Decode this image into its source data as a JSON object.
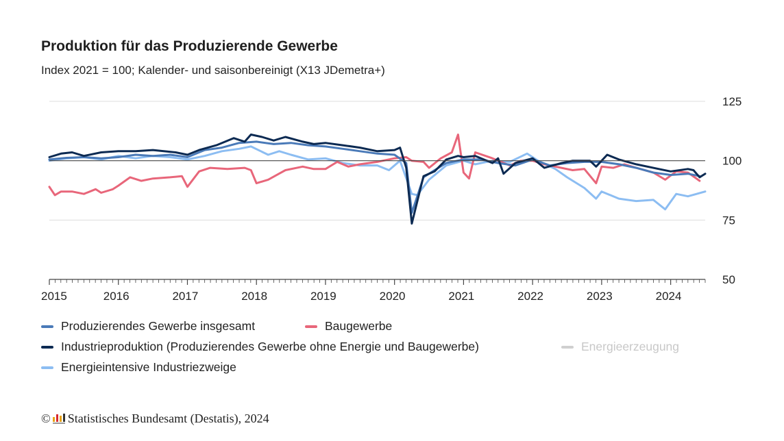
{
  "header": {
    "title": "Produktion für das Produzierende Gewerbe",
    "subtitle": "Index 2021 = 100; Kalender- und saisonbereinigt (X13 JDemetra+)"
  },
  "footer": {
    "copyright_symbol": "©",
    "source": "Statistisches Bundesamt (Destatis), 2024"
  },
  "colors": {
    "gesamt": "#4a7ab8",
    "bau": "#e8667a",
    "industrie": "#0c2a52",
    "energie": "#cfcfcf",
    "intensiv": "#8cbdf2",
    "reference_line": "#444444",
    "grid": "#dddddd",
    "axis": "#444444"
  },
  "legend": [
    {
      "key": "gesamt",
      "label": "Produzierendes Gewerbe insgesamt",
      "active": true
    },
    {
      "key": "bau",
      "label": "Baugewerbe",
      "active": true
    },
    {
      "key": "industrie",
      "label": "Industrieproduktion (Produzierendes Gewerbe ohne Energie und Baugewerbe)",
      "active": true
    },
    {
      "key": "energie",
      "label": "Energieerzeugung",
      "active": false
    },
    {
      "key": "intensiv",
      "label": "Energieintensive Industriezweige",
      "active": true
    }
  ],
  "chart_data": {
    "type": "line",
    "title": "Produktion für das Produzierende Gewerbe",
    "subtitle": "Index 2021 = 100; Kalender- und saisonbereinigt (X13 JDemetra+)",
    "xlabel": "",
    "ylabel": "",
    "x_tick_labels": [
      "2015",
      "2016",
      "2017",
      "2018",
      "2019",
      "2020",
      "2021",
      "2022",
      "2023",
      "2024"
    ],
    "y_tick_labels": [
      "50",
      "75",
      "100",
      "125"
    ],
    "y_ticks": [
      50,
      75,
      100,
      125
    ],
    "ylim": [
      50,
      125
    ],
    "xlim": [
      "2015-01",
      "2024-06"
    ],
    "reference_line": 100,
    "grid": "horizontal",
    "y_axis_side": "right",
    "legend_position": "bottom",
    "series": [
      {
        "name": "Produzierendes Gewerbe insgesamt",
        "key": "gesamt",
        "values": [
          [
            2015.0,
            100.5
          ],
          [
            2015.25,
            101.2
          ],
          [
            2015.5,
            101.5
          ],
          [
            2015.75,
            101.0
          ],
          [
            2016.0,
            101.5
          ],
          [
            2016.25,
            102.5
          ],
          [
            2016.5,
            102.0
          ],
          [
            2016.75,
            102.5
          ],
          [
            2017.0,
            101.5
          ],
          [
            2017.25,
            104.5
          ],
          [
            2017.5,
            105.5
          ],
          [
            2017.75,
            107.5
          ],
          [
            2018.0,
            108.0
          ],
          [
            2018.25,
            107.0
          ],
          [
            2018.5,
            107.5
          ],
          [
            2018.75,
            106.5
          ],
          [
            2019.0,
            106.0
          ],
          [
            2019.25,
            105.0
          ],
          [
            2019.5,
            104.0
          ],
          [
            2019.75,
            103.0
          ],
          [
            2020.0,
            102.5
          ],
          [
            2020.17,
            99.0
          ],
          [
            2020.25,
            78.0
          ],
          [
            2020.42,
            93.0
          ],
          [
            2020.58,
            96.0
          ],
          [
            2020.75,
            99.0
          ],
          [
            2021.0,
            100.5
          ],
          [
            2021.25,
            100.5
          ],
          [
            2021.5,
            99.0
          ],
          [
            2021.75,
            98.0
          ],
          [
            2022.0,
            100.5
          ],
          [
            2022.25,
            98.0
          ],
          [
            2022.5,
            99.0
          ],
          [
            2022.75,
            99.5
          ],
          [
            2023.0,
            99.5
          ],
          [
            2023.25,
            98.5
          ],
          [
            2023.5,
            97.0
          ],
          [
            2023.75,
            95.0
          ],
          [
            2024.0,
            94.0
          ],
          [
            2024.25,
            94.5
          ],
          [
            2024.42,
            93.5
          ]
        ]
      },
      {
        "name": "Baugewerbe",
        "key": "bau",
        "values": [
          [
            2015.0,
            89.0
          ],
          [
            2015.08,
            85.5
          ],
          [
            2015.17,
            87.0
          ],
          [
            2015.33,
            87.0
          ],
          [
            2015.5,
            86.0
          ],
          [
            2015.67,
            88.0
          ],
          [
            2015.75,
            86.5
          ],
          [
            2015.92,
            88.0
          ],
          [
            2016.0,
            89.5
          ],
          [
            2016.17,
            93.0
          ],
          [
            2016.33,
            91.5
          ],
          [
            2016.5,
            92.5
          ],
          [
            2016.75,
            93.0
          ],
          [
            2016.92,
            93.5
          ],
          [
            2017.0,
            89.0
          ],
          [
            2017.17,
            95.5
          ],
          [
            2017.33,
            97.0
          ],
          [
            2017.58,
            96.5
          ],
          [
            2017.83,
            97.0
          ],
          [
            2017.92,
            96.0
          ],
          [
            2018.0,
            90.5
          ],
          [
            2018.17,
            92.0
          ],
          [
            2018.42,
            96.0
          ],
          [
            2018.67,
            97.5
          ],
          [
            2018.83,
            96.5
          ],
          [
            2019.0,
            96.5
          ],
          [
            2019.17,
            99.5
          ],
          [
            2019.33,
            97.5
          ],
          [
            2019.5,
            98.5
          ],
          [
            2019.75,
            99.5
          ],
          [
            2020.0,
            101.0
          ],
          [
            2020.17,
            101.5
          ],
          [
            2020.25,
            100.0
          ],
          [
            2020.42,
            99.5
          ],
          [
            2020.5,
            97.0
          ],
          [
            2020.67,
            101.0
          ],
          [
            2020.83,
            103.5
          ],
          [
            2020.92,
            111.0
          ],
          [
            2021.0,
            95.0
          ],
          [
            2021.08,
            92.5
          ],
          [
            2021.17,
            103.5
          ],
          [
            2021.42,
            101.0
          ],
          [
            2021.67,
            98.0
          ],
          [
            2021.83,
            100.0
          ],
          [
            2022.0,
            100.0
          ],
          [
            2022.17,
            98.5
          ],
          [
            2022.33,
            97.5
          ],
          [
            2022.58,
            96.0
          ],
          [
            2022.75,
            96.5
          ],
          [
            2022.92,
            90.5
          ],
          [
            2023.0,
            97.5
          ],
          [
            2023.17,
            97.0
          ],
          [
            2023.33,
            98.5
          ],
          [
            2023.5,
            97.0
          ],
          [
            2023.75,
            95.0
          ],
          [
            2023.92,
            92.0
          ],
          [
            2024.08,
            95.5
          ],
          [
            2024.25,
            95.0
          ],
          [
            2024.42,
            91.5
          ]
        ]
      },
      {
        "name": "Industrieproduktion (Produzierendes Gewerbe ohne Energie und Baugewerbe)",
        "key": "industrie",
        "values": [
          [
            2015.0,
            101.5
          ],
          [
            2015.17,
            103.0
          ],
          [
            2015.33,
            103.5
          ],
          [
            2015.5,
            102.0
          ],
          [
            2015.75,
            103.5
          ],
          [
            2016.0,
            104.0
          ],
          [
            2016.25,
            104.0
          ],
          [
            2016.5,
            104.5
          ],
          [
            2016.83,
            103.5
          ],
          [
            2017.0,
            102.5
          ],
          [
            2017.17,
            104.5
          ],
          [
            2017.42,
            106.5
          ],
          [
            2017.67,
            109.5
          ],
          [
            2017.83,
            108.0
          ],
          [
            2017.92,
            111.0
          ],
          [
            2018.08,
            110.0
          ],
          [
            2018.25,
            108.5
          ],
          [
            2018.42,
            110.0
          ],
          [
            2018.67,
            108.0
          ],
          [
            2018.83,
            107.0
          ],
          [
            2019.0,
            107.5
          ],
          [
            2019.25,
            106.5
          ],
          [
            2019.5,
            105.5
          ],
          [
            2019.75,
            104.0
          ],
          [
            2020.0,
            104.5
          ],
          [
            2020.08,
            105.5
          ],
          [
            2020.17,
            97.0
          ],
          [
            2020.25,
            73.5
          ],
          [
            2020.42,
            93.5
          ],
          [
            2020.58,
            95.5
          ],
          [
            2020.75,
            100.5
          ],
          [
            2020.92,
            102.0
          ],
          [
            2021.0,
            101.5
          ],
          [
            2021.17,
            102.0
          ],
          [
            2021.42,
            99.0
          ],
          [
            2021.5,
            101.0
          ],
          [
            2021.58,
            94.5
          ],
          [
            2021.75,
            99.0
          ],
          [
            2022.0,
            101.0
          ],
          [
            2022.17,
            97.0
          ],
          [
            2022.42,
            99.0
          ],
          [
            2022.58,
            100.0
          ],
          [
            2022.83,
            100.0
          ],
          [
            2022.92,
            97.5
          ],
          [
            2023.08,
            102.5
          ],
          [
            2023.25,
            100.5
          ],
          [
            2023.5,
            98.5
          ],
          [
            2023.83,
            96.5
          ],
          [
            2024.0,
            95.5
          ],
          [
            2024.25,
            96.5
          ],
          [
            2024.33,
            96.0
          ],
          [
            2024.42,
            93.0
          ],
          [
            2024.5,
            94.5
          ]
        ]
      },
      {
        "name": "Energieintensive Industriezweige",
        "key": "intensiv",
        "values": [
          [
            2015.0,
            100.0
          ],
          [
            2015.25,
            101.0
          ],
          [
            2015.5,
            101.5
          ],
          [
            2015.75,
            100.5
          ],
          [
            2016.0,
            102.0
          ],
          [
            2016.25,
            101.0
          ],
          [
            2016.5,
            102.0
          ],
          [
            2016.75,
            101.5
          ],
          [
            2017.0,
            100.5
          ],
          [
            2017.25,
            102.0
          ],
          [
            2017.5,
            104.0
          ],
          [
            2017.75,
            105.0
          ],
          [
            2017.92,
            106.0
          ],
          [
            2018.17,
            102.5
          ],
          [
            2018.33,
            104.0
          ],
          [
            2018.5,
            102.5
          ],
          [
            2018.75,
            100.5
          ],
          [
            2019.0,
            101.0
          ],
          [
            2019.25,
            99.0
          ],
          [
            2019.5,
            98.0
          ],
          [
            2019.75,
            98.0
          ],
          [
            2019.92,
            96.0
          ],
          [
            2020.08,
            100.0
          ],
          [
            2020.25,
            86.0
          ],
          [
            2020.33,
            85.5
          ],
          [
            2020.5,
            92.0
          ],
          [
            2020.75,
            98.0
          ],
          [
            2021.0,
            100.0
          ],
          [
            2021.17,
            98.5
          ],
          [
            2021.42,
            100.0
          ],
          [
            2021.67,
            99.5
          ],
          [
            2021.92,
            103.0
          ],
          [
            2022.08,
            100.0
          ],
          [
            2022.33,
            96.5
          ],
          [
            2022.5,
            93.0
          ],
          [
            2022.75,
            88.5
          ],
          [
            2022.92,
            84.0
          ],
          [
            2023.0,
            87.0
          ],
          [
            2023.25,
            84.0
          ],
          [
            2023.5,
            83.0
          ],
          [
            2023.75,
            83.5
          ],
          [
            2023.92,
            79.5
          ],
          [
            2024.08,
            86.0
          ],
          [
            2024.25,
            85.0
          ],
          [
            2024.5,
            87.0
          ]
        ]
      }
    ]
  }
}
